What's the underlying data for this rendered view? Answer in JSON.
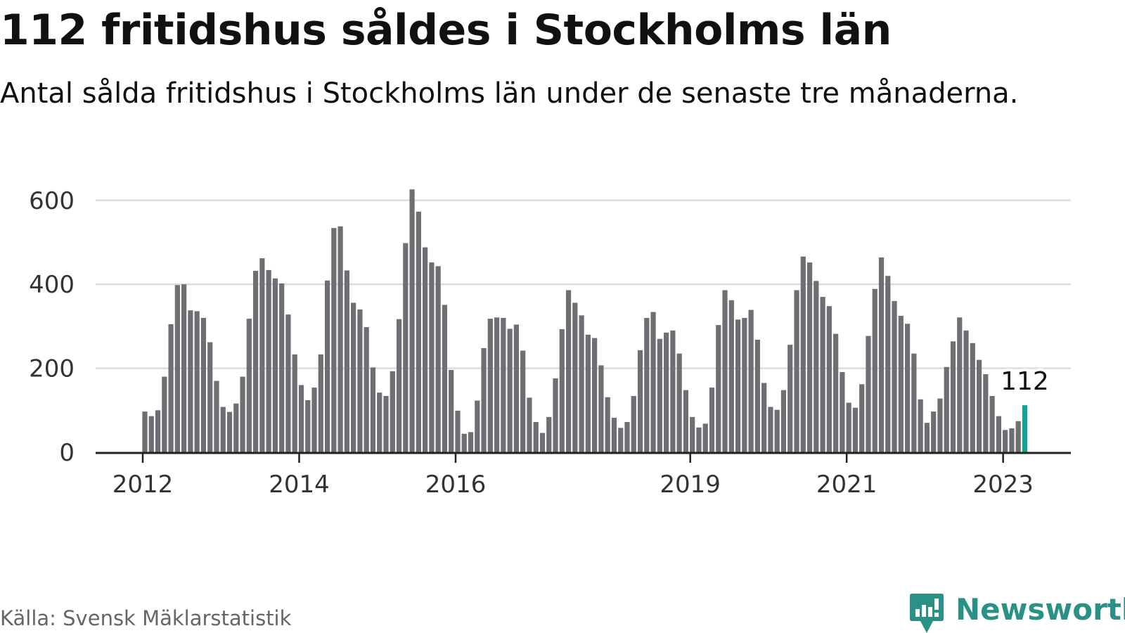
{
  "title": "112 fritidshus såldes i Stockholms län",
  "subtitle": "Antal sålda fritidshus i Stockholms län under de senaste tre månaderna.",
  "source": "Källa: Svensk Mäklarstatistik",
  "brand": {
    "name": "Newsworthy",
    "logo_icon": "bar-chart-speech-bubble-icon",
    "color": "#2a9187"
  },
  "colors": {
    "bar": "#6e6e73",
    "highlight": "#17a096",
    "grid": "#dcdcdc",
    "axis": "#222222"
  },
  "chart_data": {
    "type": "bar",
    "title": "112 fritidshus såldes i Stockholms län",
    "xlabel": "",
    "ylabel": "",
    "ylim": [
      0,
      660
    ],
    "yticks": [
      0,
      200,
      400,
      600
    ],
    "grid": true,
    "start": "2012-01",
    "frequency": "monthly",
    "xticks": [
      {
        "label": "2012",
        "index": 0
      },
      {
        "label": "2014",
        "index": 24
      },
      {
        "label": "2016",
        "index": 48
      },
      {
        "label": "2019",
        "index": 84
      },
      {
        "label": "2021",
        "index": 108
      },
      {
        "label": "2023",
        "index": 132
      }
    ],
    "values": [
      97,
      86,
      100,
      180,
      305,
      398,
      400,
      338,
      336,
      320,
      262,
      170,
      108,
      96,
      116,
      180,
      318,
      432,
      462,
      434,
      414,
      402,
      328,
      233,
      160,
      124,
      154,
      233,
      409,
      534,
      538,
      433,
      356,
      340,
      298,
      202,
      142,
      134,
      193,
      317,
      498,
      626,
      573,
      488,
      452,
      443,
      351,
      196,
      99,
      44,
      48,
      123,
      248,
      318,
      321,
      320,
      294,
      304,
      242,
      130,
      72,
      46,
      84,
      176,
      293,
      386,
      356,
      326,
      280,
      272,
      207,
      131,
      82,
      58,
      72,
      134,
      243,
      320,
      334,
      270,
      285,
      290,
      235,
      148,
      84,
      59,
      68,
      154,
      303,
      386,
      362,
      316,
      320,
      339,
      268,
      165,
      108,
      101,
      148,
      256,
      386,
      466,
      452,
      408,
      370,
      348,
      282,
      191,
      118,
      106,
      162,
      277,
      389,
      464,
      420,
      360,
      325,
      306,
      235,
      126,
      70,
      97,
      128,
      203,
      264,
      321,
      290,
      260,
      220,
      186,
      134,
      86,
      53,
      57,
      74,
      112
    ],
    "highlight_index": 135,
    "annotation": {
      "label": "112",
      "index": 135
    }
  }
}
